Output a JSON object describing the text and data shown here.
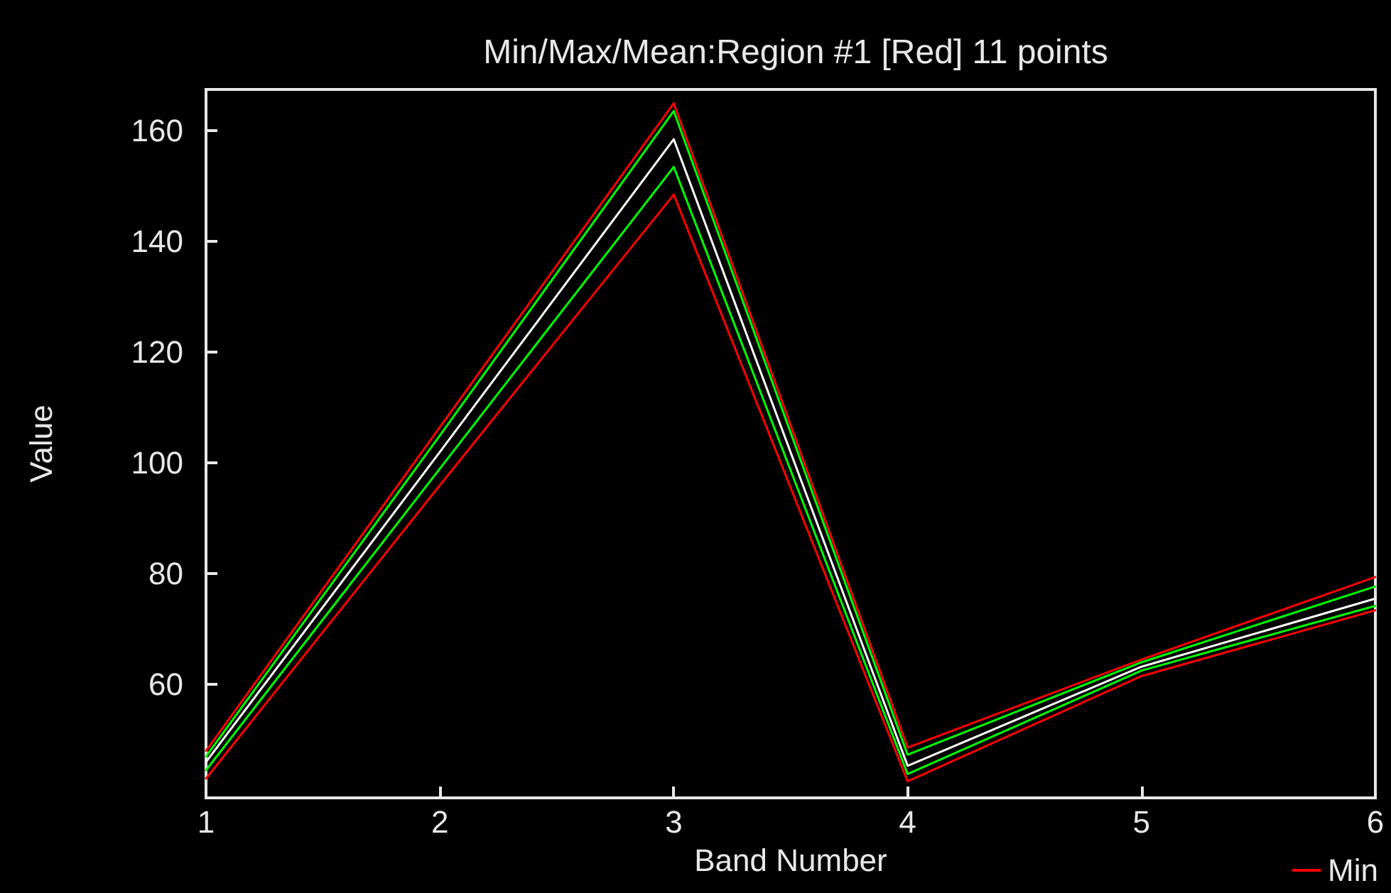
{
  "chart_data": {
    "type": "line",
    "title": "Min/Max/Mean:Region #1 [Red] 11 points",
    "xlabel": "Band Number",
    "ylabel": "Value",
    "x": [
      1,
      2,
      3,
      4,
      5,
      6
    ],
    "series": [
      {
        "name": "Min",
        "color": "#ff0000",
        "values": [
          43,
          96,
          148.5,
          42.5,
          61.5,
          73.4
        ]
      },
      {
        "color": "#ff0000",
        "values": [
          48,
          106.5,
          165,
          48.6,
          64.5,
          79.4
        ]
      },
      {
        "color": "#00ff00",
        "values": [
          44.5,
          99,
          153.5,
          43.8,
          62.5,
          74.2
        ]
      },
      {
        "color": "#00ff00",
        "values": [
          47,
          105,
          163.6,
          47.3,
          64,
          77.7
        ]
      },
      {
        "color": "#ffffff",
        "values": [
          46,
          102,
          158.5,
          45.3,
          63.2,
          75.5
        ]
      }
    ],
    "xlim": [
      1,
      6
    ],
    "xticks": [
      1,
      2,
      3,
      4,
      5,
      6
    ],
    "ylim": [
      39.5,
      167.5
    ],
    "yticks": [
      60,
      80,
      100,
      120,
      140,
      160
    ],
    "grid": false,
    "legend": "bottom right",
    "marker": "none",
    "line_style": "solid"
  }
}
